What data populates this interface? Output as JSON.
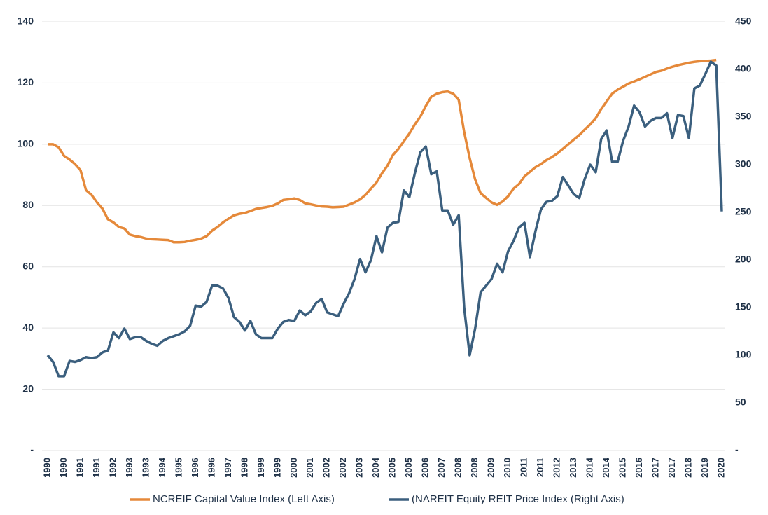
{
  "chart_data": {
    "type": "line",
    "categories": [
      "1990",
      null,
      null,
      "1990",
      null,
      null,
      "1991",
      null,
      null,
      "1991",
      null,
      null,
      "1992",
      null,
      null,
      "1993",
      null,
      null,
      "1993",
      null,
      null,
      "1994",
      null,
      null,
      "1995",
      null,
      null,
      "1996",
      null,
      null,
      "1996",
      null,
      null,
      "1997",
      null,
      null,
      "1998",
      null,
      null,
      "1999",
      null,
      null,
      "1999",
      null,
      null,
      "2000",
      null,
      null,
      "2001",
      null,
      null,
      "2002",
      null,
      null,
      "2002",
      null,
      null,
      "2003",
      null,
      null,
      "2004",
      null,
      null,
      "2005",
      null,
      null,
      "2005",
      null,
      null,
      "2006",
      null,
      null,
      "2007",
      null,
      null,
      "2008",
      null,
      null,
      "2008",
      null,
      null,
      "2009",
      null,
      null,
      "2010",
      null,
      null,
      "2011",
      null,
      null,
      "2011",
      null,
      null,
      "2012",
      null,
      null,
      "2013",
      null,
      null,
      "2014",
      null,
      null,
      "2014",
      null,
      null,
      "2015",
      null,
      null,
      "2016",
      null,
      null,
      "2017",
      null,
      null,
      "2017",
      null,
      null,
      "2018",
      null,
      null,
      "2019",
      null,
      null,
      "2020"
    ],
    "series": [
      {
        "name": "NCREIF Capital Value Index (Left Axis)",
        "color": "#e5893a",
        "axis": "y",
        "values": [
          100,
          100,
          99,
          96.2,
          95,
          93.5,
          91.5,
          85,
          83.5,
          81,
          79,
          75.5,
          74.5,
          73,
          72.5,
          70.5,
          70,
          69.7,
          69.2,
          69,
          68.9,
          68.8,
          68.7,
          68,
          68,
          68.1,
          68.5,
          68.8,
          69.2,
          70,
          71.8,
          73,
          74.5,
          75.7,
          76.8,
          77.3,
          77.6,
          78.2,
          78.9,
          79.2,
          79.5,
          79.9,
          80.7,
          81.8,
          82,
          82.3,
          81.8,
          80.7,
          80.4,
          80,
          79.7,
          79.6,
          79.4,
          79.5,
          79.6,
          80.3,
          81,
          82,
          83.5,
          85.5,
          87.5,
          90.5,
          93,
          96.5,
          98.5,
          101,
          103.5,
          106.5,
          109,
          112.5,
          115.5,
          116.5,
          117,
          117.2,
          116.5,
          114.5,
          104,
          95.5,
          88.5,
          84,
          82.5,
          81,
          80.2,
          81.3,
          83,
          85.5,
          87,
          89.5,
          91,
          92.5,
          93.5,
          94.8,
          95.8,
          97,
          98.5,
          100,
          101.5,
          103,
          104.8,
          106.5,
          108.5,
          111.5,
          114,
          116.5,
          117.8,
          118.8,
          119.8,
          120.5,
          121.2,
          122,
          122.8,
          123.6,
          124,
          124.7,
          125.3,
          125.8,
          126.2,
          126.6,
          126.9,
          127.1,
          127.2,
          127.3,
          127.5,
          null
        ]
      },
      {
        "name": "(NAREIT Equity REIT Price Index (Right Axis)",
        "color": "#3b5f7e",
        "axis": "y2",
        "values": [
          100,
          93,
          78,
          78,
          94,
          93,
          95,
          98,
          97,
          98,
          103,
          105,
          124,
          118,
          128,
          117,
          119,
          119,
          115,
          112,
          110,
          115,
          118,
          120,
          122,
          125,
          131,
          152,
          151,
          156,
          173,
          173,
          170,
          160,
          140,
          135,
          126,
          136,
          122,
          118,
          118,
          118,
          128,
          135,
          137,
          136,
          147,
          142,
          146,
          155,
          159,
          145,
          143,
          141,
          154,
          165,
          180,
          201,
          187,
          200,
          225,
          208,
          234,
          239,
          240,
          273,
          266,
          291,
          313,
          319,
          290,
          293,
          252,
          252,
          237,
          247,
          150,
          100,
          128,
          166,
          173,
          180,
          196,
          187,
          209,
          220,
          234,
          239,
          203,
          230,
          253,
          261,
          262,
          267,
          287,
          278,
          269,
          265,
          285,
          300,
          292,
          327,
          336,
          303,
          303,
          325,
          340,
          362,
          355,
          340,
          346,
          349,
          349,
          354,
          328,
          352,
          351,
          328,
          380,
          383,
          395,
          408,
          404,
          251
        ]
      }
    ],
    "ylim": [
      0,
      140
    ],
    "yticks": [
      {
        "value": 0,
        "label": "-"
      },
      20,
      40,
      60,
      80,
      100,
      120,
      140
    ],
    "y2lim": [
      0,
      450
    ],
    "y2ticks": [
      {
        "value": 0,
        "label": "-"
      },
      50,
      100,
      150,
      200,
      250,
      300,
      350,
      400,
      450
    ],
    "grid": true,
    "legend": "bottom"
  }
}
